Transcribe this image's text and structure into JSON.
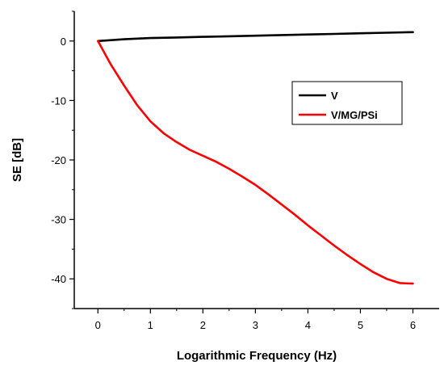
{
  "chart_data": {
    "type": "line",
    "xlabel": "Logarithmic Frequency (Hz)",
    "ylabel": "SE [dB]",
    "xlim": [
      -0.45,
      6.5
    ],
    "ylim": [
      -45,
      5
    ],
    "xticks": [
      0,
      1,
      2,
      3,
      4,
      5,
      6
    ],
    "yticks": [
      0,
      -10,
      -20,
      -30,
      -40
    ],
    "legend_position": "upper-right",
    "series": [
      {
        "name": "V",
        "color": "#000000",
        "x": [
          0,
          0.5,
          1,
          1.5,
          2,
          2.5,
          3,
          3.5,
          4,
          4.5,
          5,
          5.5,
          6
        ],
        "y": [
          0,
          0.3,
          0.5,
          0.6,
          0.7,
          0.8,
          0.9,
          1.0,
          1.1,
          1.2,
          1.3,
          1.4,
          1.5
        ]
      },
      {
        "name": "V/MG/PSi",
        "color": "#ff0000",
        "x": [
          0,
          0.25,
          0.5,
          0.75,
          1,
          1.25,
          1.5,
          1.75,
          2,
          2.25,
          2.5,
          2.75,
          3,
          3.25,
          3.5,
          3.75,
          4,
          4.25,
          4.5,
          4.75,
          5,
          5.25,
          5.5,
          5.75,
          6
        ],
        "y": [
          0,
          -4,
          -7.5,
          -10.8,
          -13.5,
          -15.5,
          -17,
          -18.3,
          -19.3,
          -20.3,
          -21.5,
          -22.8,
          -24.2,
          -25.8,
          -27.5,
          -29.2,
          -31,
          -32.7,
          -34.4,
          -36,
          -37.5,
          -38.9,
          -40,
          -40.7,
          -40.8
        ]
      }
    ]
  }
}
